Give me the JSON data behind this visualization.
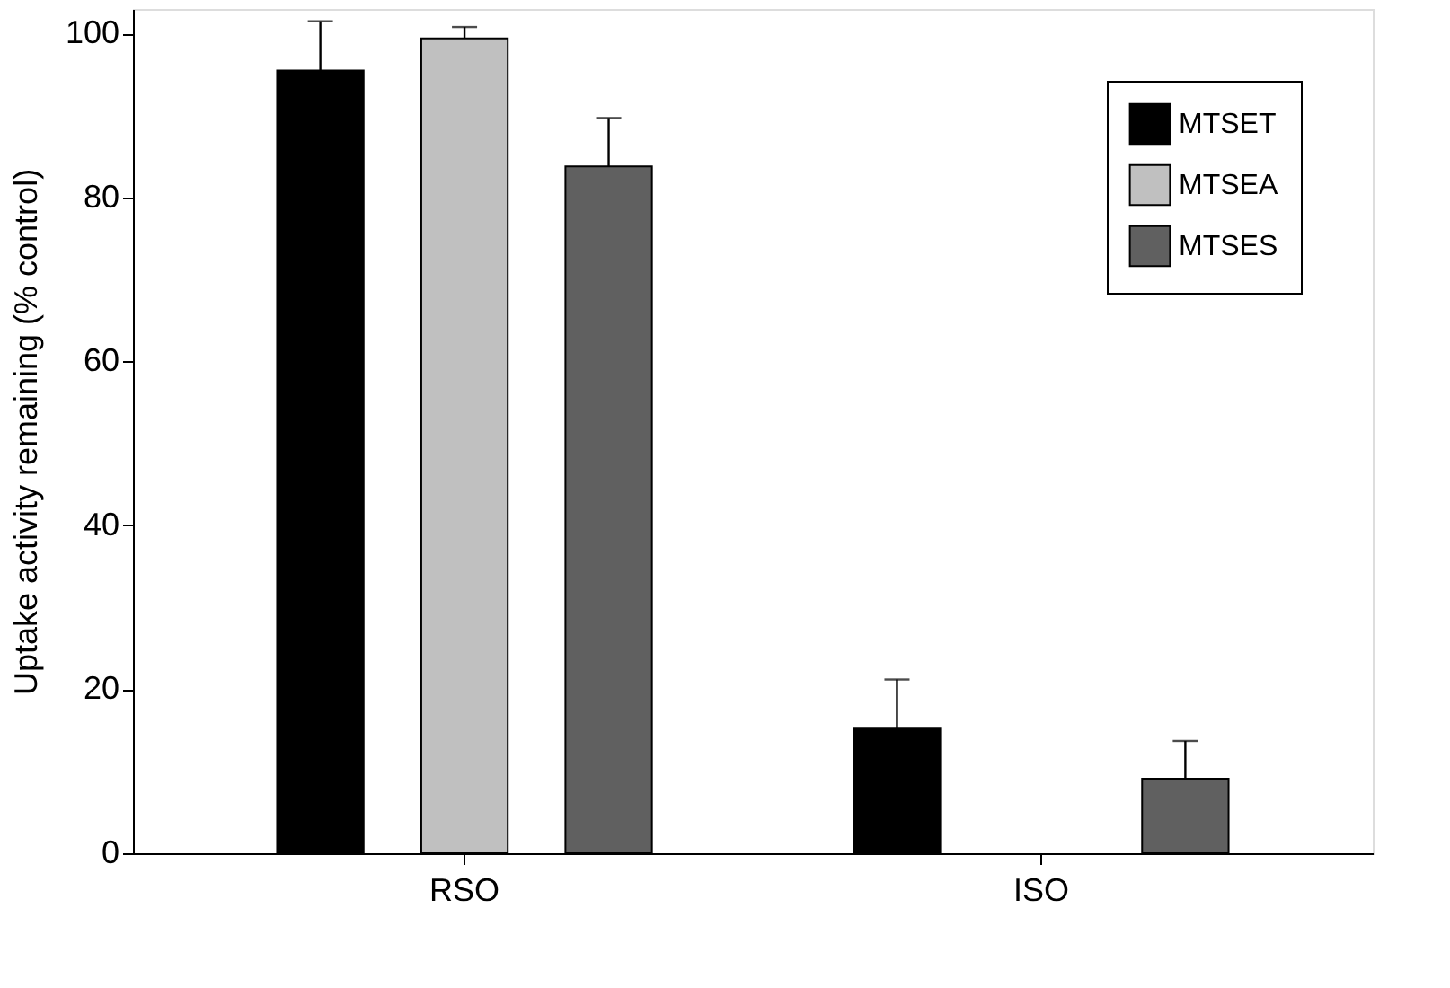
{
  "chart_data": {
    "type": "bar",
    "ylabel": "Uptake activity remaining (% control)",
    "categories": [
      "RSO",
      "ISO"
    ],
    "ylim": [
      0,
      103
    ],
    "yticks": [
      0,
      20,
      40,
      60,
      80,
      100
    ],
    "grid": false,
    "legend": "top right",
    "series": [
      {
        "name": "MTSET",
        "color": "#000000",
        "values": [
          95.5,
          15.3
        ],
        "errors": [
          [
            95.5,
            101.5
          ],
          [
            15.3,
            21.2
          ]
        ]
      },
      {
        "name": "MTSEA",
        "color": "#c0c0c0",
        "values": [
          99.4,
          null
        ],
        "errors": [
          [
            99.4,
            100.8
          ],
          null
        ]
      },
      {
        "name": "MTSES",
        "color": "#606060",
        "values": [
          83.8,
          9.1
        ],
        "errors": [
          [
            83.8,
            89.7
          ],
          [
            9.1,
            13.7
          ]
        ]
      }
    ]
  }
}
